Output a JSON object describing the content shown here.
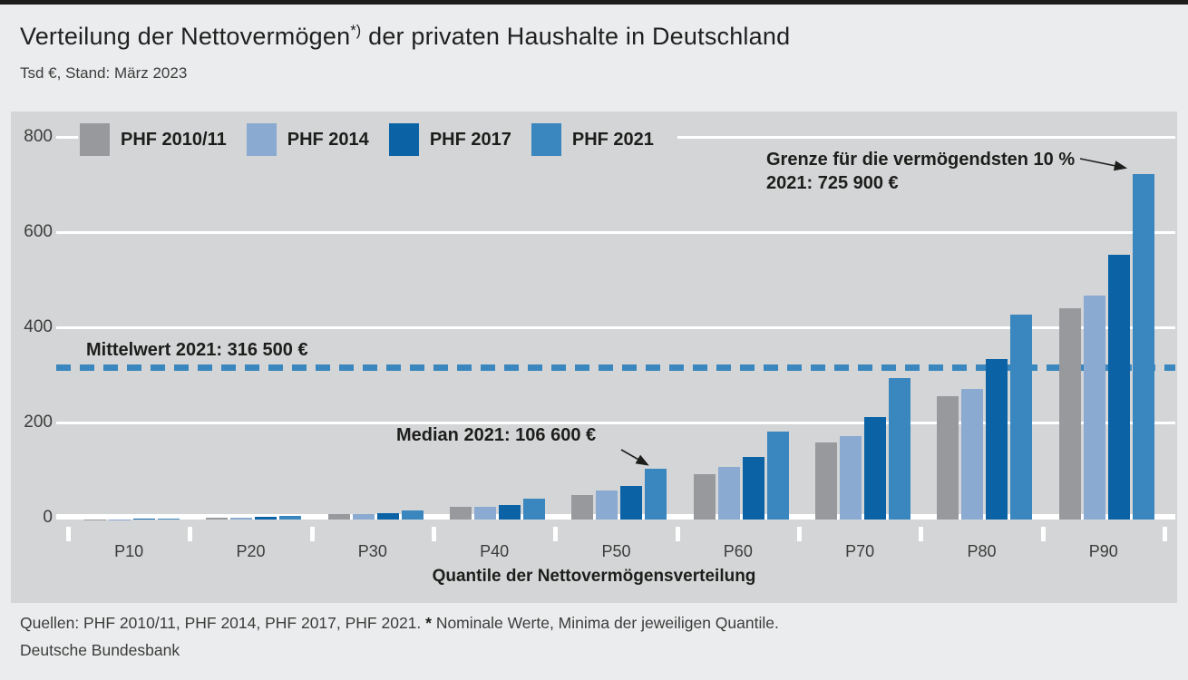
{
  "header": {
    "title_main": "Verteilung der Nettovermögen",
    "title_sup": "*)",
    "title_rest": " der privaten Haushalte in Deutschland",
    "subtitle": "Tsd €, Stand: März 2023"
  },
  "chart_data": {
    "type": "bar",
    "title": "Verteilung der Nettovermögen der privaten Haushalte in Deutschland",
    "unit": "Tsd €",
    "categories": [
      "P10",
      "P20",
      "P30",
      "P40",
      "P50",
      "P60",
      "P70",
      "P80",
      "P90"
    ],
    "series": [
      {
        "name": "PHF 2010/11",
        "color": "#97999c",
        "values": [
          0.5,
          4,
          11,
          27,
          51.4,
          95,
          162,
          260,
          444
        ]
      },
      {
        "name": "PHF 2014",
        "color": "#8aaad2",
        "values": [
          0.8,
          4.5,
          12,
          26,
          60.4,
          110,
          175,
          275,
          470
        ]
      },
      {
        "name": "PHF 2017",
        "color": "#0b63a6",
        "values": [
          1,
          6,
          14,
          31,
          70.8,
          131,
          216,
          337,
          556
        ]
      },
      {
        "name": "PHF 2021",
        "color": "#3a86be",
        "values": [
          2,
          8,
          19,
          44,
          106.6,
          184,
          298,
          430,
          725.9
        ]
      }
    ],
    "ylim": [
      0,
      800
    ],
    "yticks": [
      0,
      200,
      400,
      600,
      800
    ],
    "xlabel": "Quantile der Nettovermögensverteilung",
    "grid": true,
    "legend_position": "top",
    "mean_line": {
      "value": 316.5,
      "label": "Mittelwert 2021: 316 500 €",
      "style": "dashed",
      "color": "#3a86be"
    },
    "annotations": [
      {
        "id": "median",
        "text": "Median 2021: 106 600 €",
        "points_to": "P50, PHF 2021 bar",
        "value": 106.6
      },
      {
        "id": "top10",
        "text_line1": "Grenze für die vermögendsten 10 %",
        "text_line2": "2021: 725 900 €",
        "points_to": "P90, PHF 2021 bar",
        "value": 725.9
      }
    ]
  },
  "footer": {
    "sources_prefix": "Quellen: PHF 2010/11, PHF 2014, PHF 2017, PHF 2021. ",
    "footnote_star": "*",
    "footnote_text": " Nominale Werte, Minima der jeweiligen Quantile.",
    "publisher": "Deutsche Bundesbank"
  },
  "colors": {
    "panel_background": "#d3d5d6",
    "page_background": "#ebeced",
    "gridline": "#ffffff",
    "text": "#1d1d1b",
    "mean_line": "#3a86be"
  }
}
